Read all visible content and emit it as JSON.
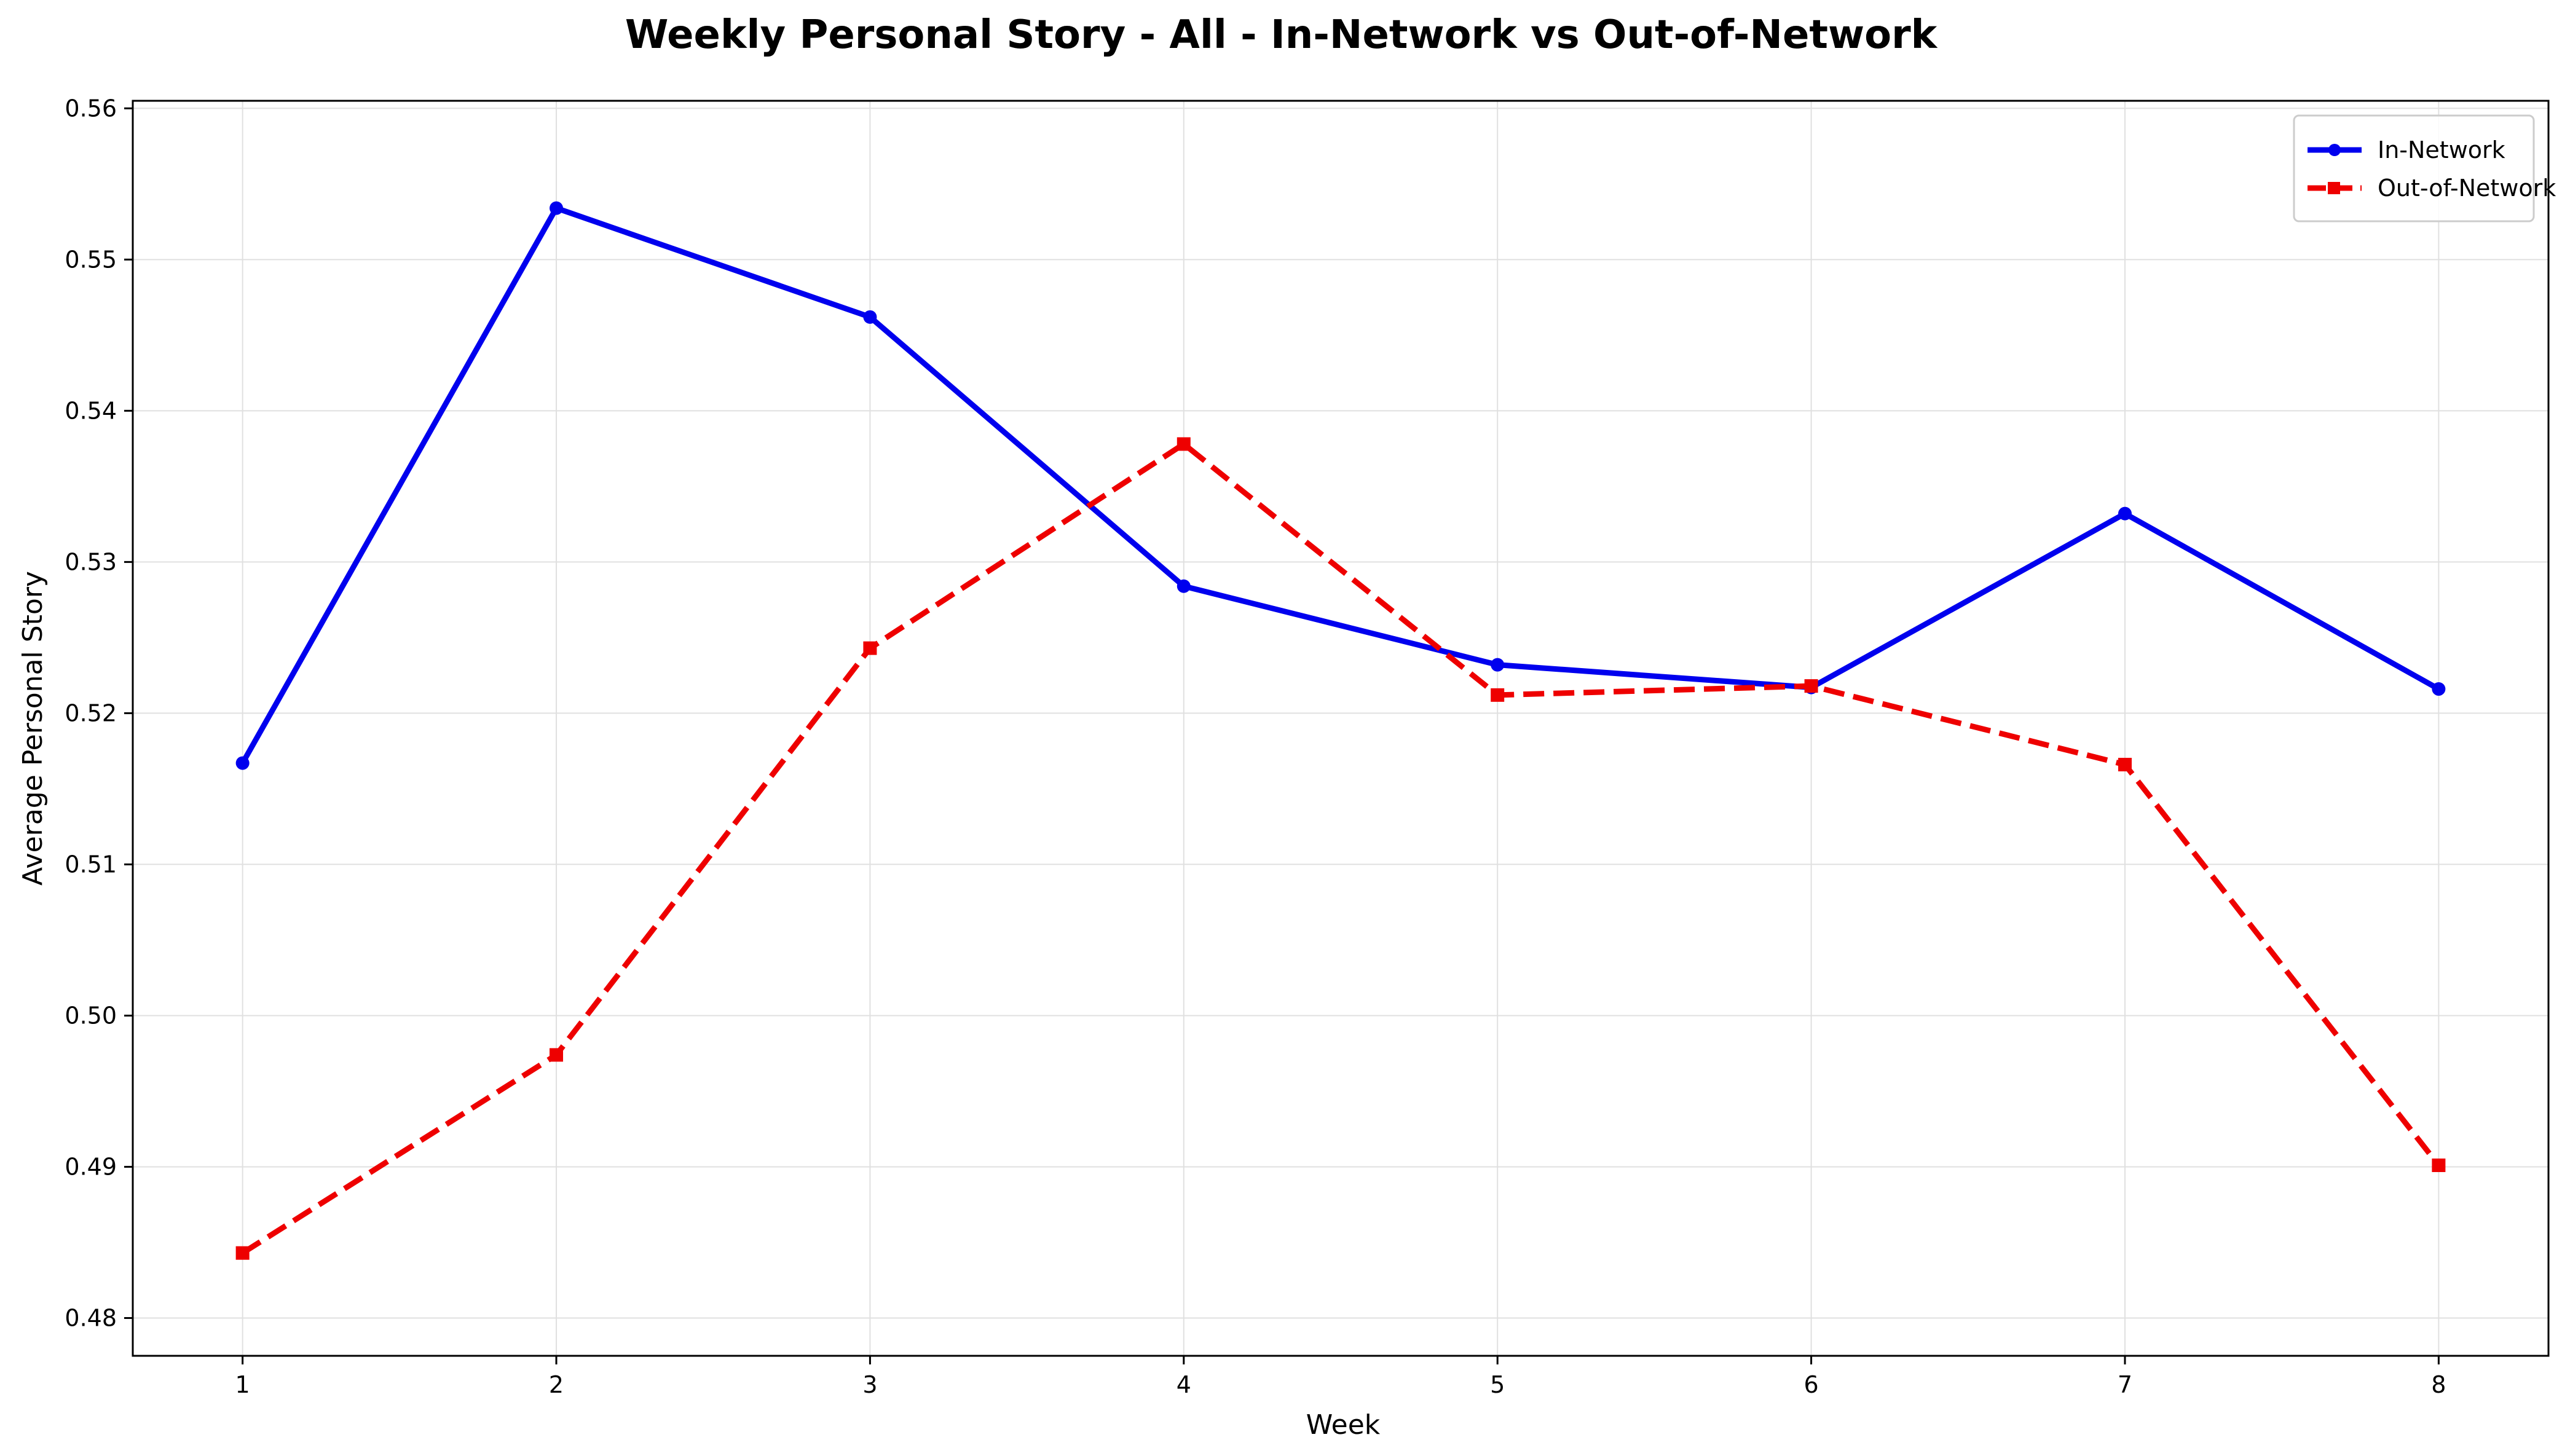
{
  "chart_data": {
    "type": "line",
    "title": "Weekly Personal Story - All - In-Network vs Out-of-Network",
    "xlabel": "Week",
    "ylabel": "Average Personal Story",
    "x": [
      1,
      2,
      3,
      4,
      5,
      6,
      7,
      8
    ],
    "xlim": [
      0.65,
      8.35
    ],
    "ylim": [
      0.4775,
      0.5605
    ],
    "yticks": [
      0.48,
      0.49,
      0.5,
      0.51,
      0.52,
      0.53,
      0.54,
      0.55,
      0.56
    ],
    "ytick_labels": [
      "0.48",
      "0.49",
      "0.50",
      "0.51",
      "0.52",
      "0.53",
      "0.54",
      "0.55",
      "0.56"
    ],
    "xtick_labels": [
      "1",
      "2",
      "3",
      "4",
      "5",
      "6",
      "7",
      "8"
    ],
    "grid": true,
    "legend_position": "top-right",
    "series": [
      {
        "name": "In-Network",
        "color": "#0000ee",
        "line_style": "solid",
        "marker": "circle",
        "values": [
          0.5167,
          0.5534,
          0.5462,
          0.5284,
          0.5232,
          0.5217,
          0.5332,
          0.5216
        ]
      },
      {
        "name": "Out-of-Network",
        "color": "#ee0000",
        "line_style": "dashed",
        "marker": "square",
        "values": [
          0.4843,
          0.4974,
          0.5243,
          0.5378,
          0.5212,
          0.5218,
          0.5166,
          0.4901
        ]
      }
    ]
  }
}
